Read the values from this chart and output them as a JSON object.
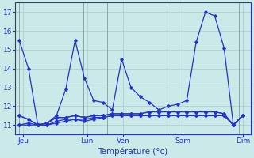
{
  "background_color": "#cce9e9",
  "line_color": "#2233cc",
  "grid_color": "#aac8c8",
  "xlabel": "Température (°c)",
  "xlabel_color": "#2233cc",
  "tick_label_color": "#2233cc",
  "ylim": [
    10.5,
    17.5
  ],
  "yticks": [
    11,
    12,
    13,
    14,
    15,
    16,
    17
  ],
  "x_day_labels": [
    "Jeu",
    "Lun",
    "Ven",
    "Sam",
    "Dim"
  ],
  "x_day_positions": [
    0.5,
    8.5,
    13.0,
    20.5,
    28.0
  ],
  "xlim": [
    -0.5,
    29.0
  ],
  "vline_positions": [
    0,
    8,
    11,
    19,
    27.5
  ],
  "series": [
    [
      15.5,
      14.0,
      11.0,
      11.1,
      11.5,
      12.9,
      15.5,
      13.5,
      12.3,
      12.2,
      11.8,
      14.5,
      13.0,
      12.5,
      12.2,
      11.8,
      12.0,
      12.1,
      12.3,
      15.4,
      17.0,
      16.8,
      15.1,
      11.0,
      11.5
    ],
    [
      11.5,
      11.3,
      11.0,
      11.1,
      11.4,
      11.4,
      11.5,
      11.4,
      11.5,
      11.5,
      11.6,
      11.6,
      11.6,
      11.6,
      11.7,
      11.7,
      11.7,
      11.7,
      11.7,
      11.7,
      11.7,
      11.7,
      11.6,
      11.0,
      11.5
    ],
    [
      11.5,
      11.3,
      11.0,
      11.1,
      11.4,
      11.4,
      11.5,
      11.4,
      11.5,
      11.5,
      11.6,
      11.6,
      11.6,
      11.6,
      11.7,
      11.7,
      11.7,
      11.7,
      11.7,
      11.7,
      11.7,
      11.7,
      11.6,
      11.0,
      11.5
    ],
    [
      11.0,
      11.1,
      11.0,
      11.0,
      11.2,
      11.3,
      11.3,
      11.3,
      11.4,
      11.4,
      11.5,
      11.5,
      11.5,
      11.5,
      11.5,
      11.5,
      11.5,
      11.5,
      11.5,
      11.5,
      11.5,
      11.5,
      11.5,
      11.0,
      11.5
    ],
    [
      11.0,
      11.0,
      11.0,
      11.0,
      11.1,
      11.2,
      11.3,
      11.2,
      11.3,
      11.4,
      11.5,
      11.5,
      11.5,
      11.5,
      11.5,
      11.5,
      11.5,
      11.5,
      11.5,
      11.5,
      11.5,
      11.5,
      11.5,
      11.0,
      11.5
    ]
  ],
  "n_points": 25,
  "marker": "D",
  "marker_size": 1.8,
  "linewidth": 0.9
}
